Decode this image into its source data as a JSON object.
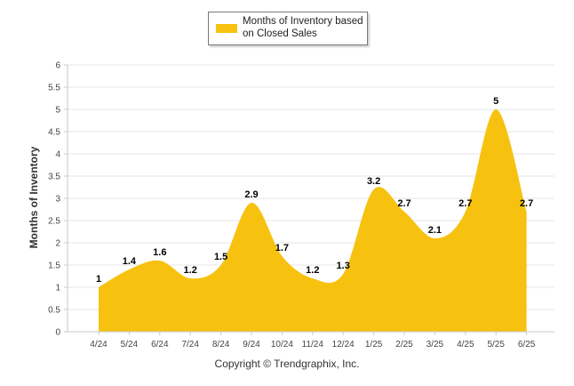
{
  "chart_data": {
    "type": "area",
    "categories": [
      "4/24",
      "5/24",
      "6/24",
      "7/24",
      "8/24",
      "9/24",
      "10/24",
      "11/24",
      "12/24",
      "1/25",
      "2/25",
      "3/25",
      "4/25",
      "5/25",
      "6/25"
    ],
    "series": [
      {
        "name": "Months of Inventory based on Closed Sales",
        "values": [
          1,
          1.4,
          1.6,
          1.2,
          1.5,
          2.9,
          1.7,
          1.2,
          1.3,
          3.2,
          2.7,
          2.1,
          2.7,
          5,
          2.7
        ]
      }
    ],
    "ylabel": "Months of Inventory",
    "ylim": [
      0,
      6
    ],
    "yticks": [
      0,
      0.5,
      1,
      1.5,
      2,
      2.5,
      3,
      3.5,
      4,
      4.5,
      5,
      5.5,
      6
    ],
    "ytick_labels": [
      "0",
      "0.5",
      "1",
      "1.5",
      "2",
      "2.5",
      "3",
      "3.5",
      "4",
      "4.5",
      "5",
      "5.5",
      "6"
    ],
    "grid": true,
    "legend_position": "top",
    "fill_color": "#f7c20f",
    "data_label_color": "#000000"
  },
  "footer": {
    "copyright": "Copyright © Trendgraphix, Inc."
  }
}
